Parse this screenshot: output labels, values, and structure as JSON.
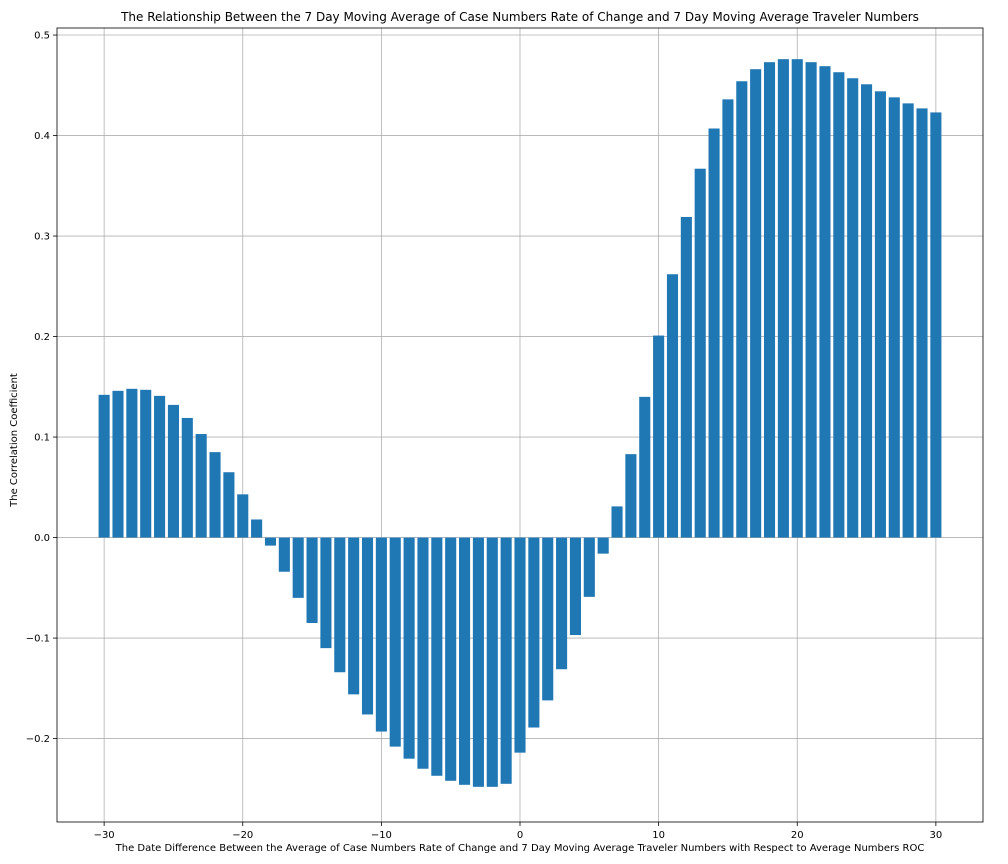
{
  "chart_data": {
    "type": "bar",
    "title": "The Relationship Between the 7 Day Moving Average of Case Numbers Rate of Change and 7 Day Moving Average Traveler Numbers",
    "xlabel": "The Date Difference Between the Average of Case Numbers Rate of Change and  7 Day Moving Average Traveler Numbers with Respect to Average Numbers ROC",
    "ylabel": "The Correlation Coefficient",
    "xlim": [
      -33.4,
      33.4
    ],
    "ylim": [
      -0.283,
      0.507
    ],
    "grid": true,
    "bar_color": "#1f77b4",
    "x_ticks": [
      -30,
      -20,
      -10,
      0,
      10,
      20,
      30
    ],
    "x_tick_labels": [
      "−30",
      "−20",
      "−10",
      "0",
      "10",
      "20",
      "30"
    ],
    "y_ticks": [
      -0.2,
      -0.1,
      0.0,
      0.1,
      0.2,
      0.3,
      0.4,
      0.5
    ],
    "y_tick_labels": [
      "−0.2",
      "−0.1",
      "0.0",
      "0.1",
      "0.2",
      "0.3",
      "0.4",
      "0.5"
    ],
    "x": [
      -30,
      -29,
      -28,
      -27,
      -26,
      -25,
      -24,
      -23,
      -22,
      -21,
      -20,
      -19,
      -18,
      -17,
      -16,
      -15,
      -14,
      -13,
      -12,
      -11,
      -10,
      -9,
      -8,
      -7,
      -6,
      -5,
      -4,
      -3,
      -2,
      -1,
      0,
      1,
      2,
      3,
      4,
      5,
      6,
      7,
      8,
      9,
      10,
      11,
      12,
      13,
      14,
      15,
      16,
      17,
      18,
      19,
      20,
      21,
      22,
      23,
      24,
      25,
      26,
      27,
      28,
      29,
      30
    ],
    "values": [
      0.142,
      0.146,
      0.148,
      0.147,
      0.141,
      0.132,
      0.119,
      0.103,
      0.085,
      0.065,
      0.043,
      0.018,
      -0.008,
      -0.034,
      -0.06,
      -0.085,
      -0.11,
      -0.134,
      -0.156,
      -0.176,
      -0.193,
      -0.208,
      -0.22,
      -0.23,
      -0.237,
      -0.242,
      -0.246,
      -0.248,
      -0.248,
      -0.245,
      -0.214,
      -0.189,
      -0.162,
      -0.131,
      -0.097,
      -0.059,
      -0.016,
      0.031,
      0.083,
      0.14,
      0.201,
      0.262,
      0.319,
      0.367,
      0.407,
      0.436,
      0.454,
      0.466,
      0.473,
      0.476,
      0.476,
      0.473,
      0.469,
      0.463,
      0.457,
      0.451,
      0.444,
      0.438,
      0.432,
      0.427,
      0.423
    ]
  }
}
